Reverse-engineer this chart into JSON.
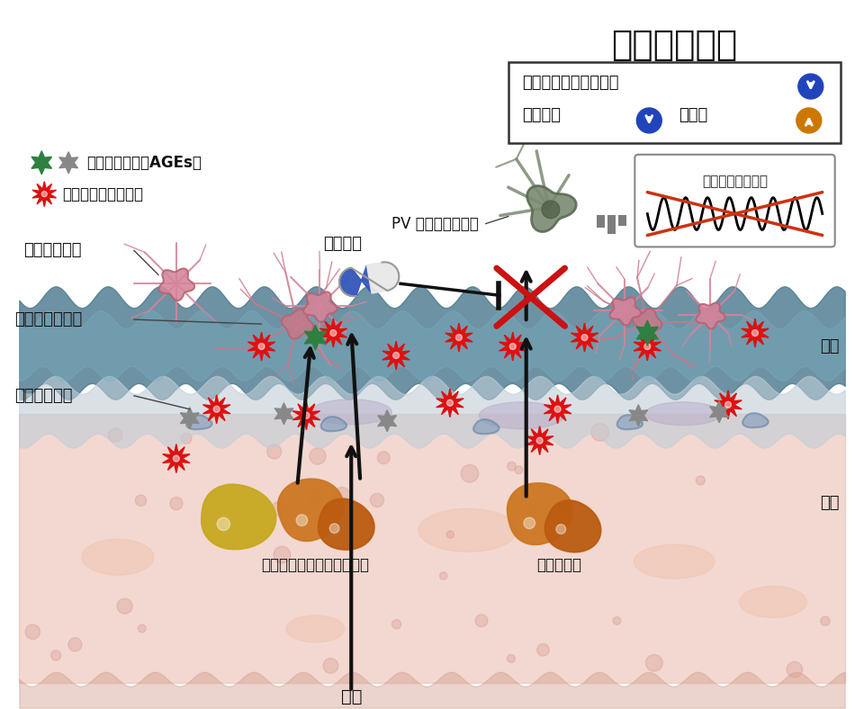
{
  "title": "精神疾患所見",
  "bg_color": "#ffffff",
  "brain_color": "#4d7a8f",
  "endo_color": "#b8cdd4",
  "blood_color": "#e8b8a8",
  "info_line1": "感覚ゲーティング機能",
  "info_line2_a": "作業記憶",
  "info_line2_b": "活動量",
  "legend_ages": "終末糖化産物（AGEs）",
  "legend_inflam": "炎症反応・細胞障害",
  "label_microglia": "ミクログリア",
  "label_astro": "アストロサイト",
  "label_endo": "血管内皮細胞",
  "label_brain": "脳内",
  "label_blood": "血中",
  "label_drug": "抗炎症剤",
  "label_neuron": "PV 陽性ニューロン",
  "label_wave": "脳波（ガンマ波）",
  "label_fructose": "フルクトース／グルコース",
  "label_glucose": "グルコース",
  "label_sugar": "砂糖"
}
